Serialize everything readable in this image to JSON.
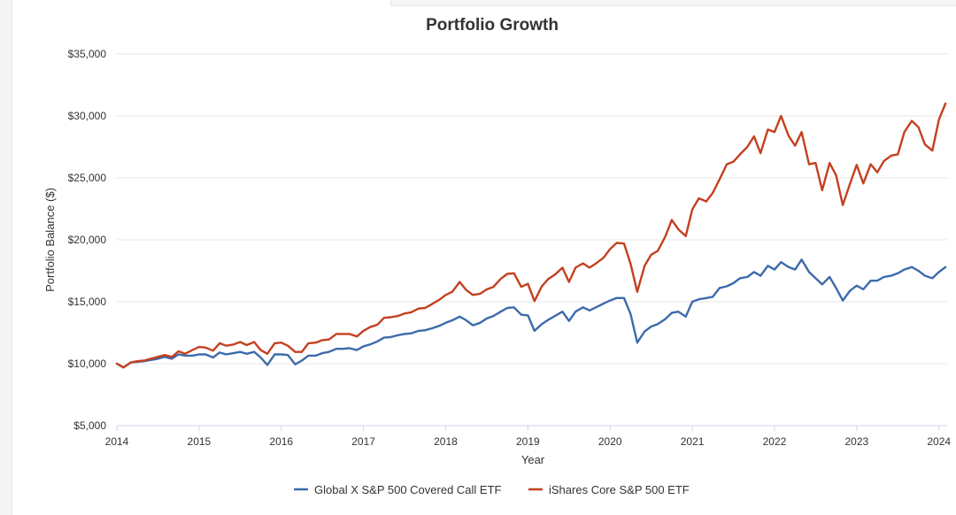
{
  "chart_data": {
    "type": "line",
    "title": "Portfolio Growth",
    "xlabel": "Year",
    "ylabel": "Portfolio Balance ($)",
    "xlim": [
      2014,
      2024.1
    ],
    "ylim": [
      5000,
      35000
    ],
    "yticks": [
      5000,
      10000,
      15000,
      20000,
      25000,
      30000,
      35000
    ],
    "ytick_labels": [
      "$5,000",
      "$10,000",
      "$15,000",
      "$20,000",
      "$25,000",
      "$30,000",
      "$35,000"
    ],
    "xticks": [
      2014,
      2015,
      2016,
      2017,
      2018,
      2019,
      2020,
      2021,
      2022,
      2023,
      2024
    ],
    "xtick_labels": [
      "2014",
      "2015",
      "2016",
      "2017",
      "2018",
      "2019",
      "2020",
      "2021",
      "2022",
      "2023",
      "2024"
    ],
    "grid": true,
    "legend_position": "bottom-center",
    "series": [
      {
        "name": "Global X S&P 500 Covered Call ETF",
        "color": "#3c6bab",
        "points": [
          [
            2014.0,
            10000
          ],
          [
            2014.08,
            9700
          ],
          [
            2014.17,
            10100
          ],
          [
            2014.25,
            10150
          ],
          [
            2014.33,
            10200
          ],
          [
            2014.5,
            10400
          ],
          [
            2014.58,
            10550
          ],
          [
            2014.67,
            10400
          ],
          [
            2014.75,
            10750
          ],
          [
            2014.83,
            10650
          ],
          [
            2014.92,
            10650
          ],
          [
            2015.0,
            10750
          ],
          [
            2015.08,
            10750
          ],
          [
            2015.17,
            10500
          ],
          [
            2015.25,
            10900
          ],
          [
            2015.33,
            10750
          ],
          [
            2015.42,
            10850
          ],
          [
            2015.5,
            10950
          ],
          [
            2015.58,
            10800
          ],
          [
            2015.67,
            10950
          ],
          [
            2015.75,
            10500
          ],
          [
            2015.83,
            9900
          ],
          [
            2015.92,
            10750
          ],
          [
            2016.0,
            10750
          ],
          [
            2016.08,
            10700
          ],
          [
            2016.17,
            9950
          ],
          [
            2016.25,
            10250
          ],
          [
            2016.33,
            10650
          ],
          [
            2016.42,
            10650
          ],
          [
            2016.5,
            10850
          ],
          [
            2016.58,
            10950
          ],
          [
            2016.67,
            11200
          ],
          [
            2016.75,
            11200
          ],
          [
            2016.83,
            11250
          ],
          [
            2016.92,
            11100
          ],
          [
            2017.0,
            11400
          ],
          [
            2017.08,
            11550
          ],
          [
            2017.17,
            11800
          ],
          [
            2017.25,
            12100
          ],
          [
            2017.33,
            12150
          ],
          [
            2017.42,
            12300
          ],
          [
            2017.5,
            12400
          ],
          [
            2017.58,
            12450
          ],
          [
            2017.67,
            12650
          ],
          [
            2017.75,
            12700
          ],
          [
            2017.83,
            12850
          ],
          [
            2017.92,
            13050
          ],
          [
            2018.0,
            13300
          ],
          [
            2018.08,
            13500
          ],
          [
            2018.17,
            13800
          ],
          [
            2018.25,
            13500
          ],
          [
            2018.33,
            13100
          ],
          [
            2018.42,
            13300
          ],
          [
            2018.5,
            13650
          ],
          [
            2018.58,
            13850
          ],
          [
            2018.67,
            14200
          ],
          [
            2018.75,
            14500
          ],
          [
            2018.83,
            14550
          ],
          [
            2018.92,
            13950
          ],
          [
            2019.0,
            13900
          ],
          [
            2019.08,
            12650
          ],
          [
            2019.17,
            13200
          ],
          [
            2019.25,
            13550
          ],
          [
            2019.33,
            13850
          ],
          [
            2019.42,
            14200
          ],
          [
            2019.5,
            13450
          ],
          [
            2019.58,
            14200
          ],
          [
            2019.67,
            14550
          ],
          [
            2019.75,
            14300
          ],
          [
            2019.83,
            14550
          ],
          [
            2019.92,
            14850
          ],
          [
            2020.0,
            15100
          ],
          [
            2020.08,
            15300
          ],
          [
            2020.17,
            15300
          ],
          [
            2020.25,
            14000
          ],
          [
            2020.33,
            11700
          ],
          [
            2020.42,
            12600
          ],
          [
            2020.5,
            13000
          ],
          [
            2020.58,
            13200
          ],
          [
            2020.67,
            13600
          ],
          [
            2020.75,
            14100
          ],
          [
            2020.83,
            14200
          ],
          [
            2020.92,
            13800
          ],
          [
            2021.0,
            15000
          ],
          [
            2021.08,
            15200
          ],
          [
            2021.17,
            15300
          ],
          [
            2021.25,
            15400
          ],
          [
            2021.33,
            16100
          ],
          [
            2021.42,
            16250
          ],
          [
            2021.5,
            16500
          ],
          [
            2021.58,
            16900
          ],
          [
            2021.67,
            17000
          ],
          [
            2021.75,
            17400
          ],
          [
            2021.83,
            17100
          ],
          [
            2021.92,
            17900
          ],
          [
            2022.0,
            17600
          ],
          [
            2022.08,
            18200
          ],
          [
            2022.17,
            17800
          ],
          [
            2022.25,
            17600
          ],
          [
            2022.33,
            18400
          ],
          [
            2022.42,
            17400
          ],
          [
            2022.5,
            16900
          ],
          [
            2022.58,
            16400
          ],
          [
            2022.67,
            17000
          ],
          [
            2022.75,
            16100
          ],
          [
            2022.83,
            15100
          ],
          [
            2022.92,
            15900
          ],
          [
            2023.0,
            16300
          ],
          [
            2023.08,
            16000
          ],
          [
            2023.17,
            16700
          ],
          [
            2023.25,
            16700
          ],
          [
            2023.33,
            17000
          ],
          [
            2023.42,
            17100
          ],
          [
            2023.5,
            17300
          ],
          [
            2023.58,
            17600
          ],
          [
            2023.67,
            17800
          ],
          [
            2023.75,
            17500
          ],
          [
            2023.83,
            17100
          ],
          [
            2023.92,
            16900
          ],
          [
            2024.0,
            17400
          ],
          [
            2024.08,
            17800
          ]
        ]
      },
      {
        "name": "iShares Core S&P 500 ETF",
        "color": "#c4401f",
        "points": [
          [
            2014.0,
            10000
          ],
          [
            2014.08,
            9700
          ],
          [
            2014.17,
            10100
          ],
          [
            2014.25,
            10200
          ],
          [
            2014.33,
            10250
          ],
          [
            2014.5,
            10550
          ],
          [
            2014.58,
            10700
          ],
          [
            2014.67,
            10550
          ],
          [
            2014.75,
            11000
          ],
          [
            2014.83,
            10800
          ],
          [
            2014.92,
            11100
          ],
          [
            2015.0,
            11350
          ],
          [
            2015.08,
            11300
          ],
          [
            2015.17,
            11050
          ],
          [
            2015.25,
            11650
          ],
          [
            2015.33,
            11450
          ],
          [
            2015.42,
            11550
          ],
          [
            2015.5,
            11750
          ],
          [
            2015.58,
            11500
          ],
          [
            2015.67,
            11750
          ],
          [
            2015.75,
            11100
          ],
          [
            2015.83,
            10800
          ],
          [
            2015.92,
            11650
          ],
          [
            2016.0,
            11700
          ],
          [
            2016.08,
            11450
          ],
          [
            2016.17,
            10950
          ],
          [
            2016.25,
            10950
          ],
          [
            2016.33,
            11650
          ],
          [
            2016.42,
            11700
          ],
          [
            2016.5,
            11900
          ],
          [
            2016.58,
            11950
          ],
          [
            2016.67,
            12400
          ],
          [
            2016.75,
            12400
          ],
          [
            2016.83,
            12400
          ],
          [
            2016.92,
            12200
          ],
          [
            2017.0,
            12650
          ],
          [
            2017.08,
            12950
          ],
          [
            2017.17,
            13150
          ],
          [
            2017.25,
            13700
          ],
          [
            2017.33,
            13750
          ],
          [
            2017.42,
            13850
          ],
          [
            2017.5,
            14050
          ],
          [
            2017.58,
            14150
          ],
          [
            2017.67,
            14450
          ],
          [
            2017.75,
            14500
          ],
          [
            2017.83,
            14800
          ],
          [
            2017.92,
            15150
          ],
          [
            2018.0,
            15550
          ],
          [
            2018.08,
            15800
          ],
          [
            2018.17,
            16600
          ],
          [
            2018.25,
            15950
          ],
          [
            2018.33,
            15550
          ],
          [
            2018.42,
            15650
          ],
          [
            2018.5,
            16000
          ],
          [
            2018.58,
            16200
          ],
          [
            2018.67,
            16850
          ],
          [
            2018.75,
            17250
          ],
          [
            2018.83,
            17300
          ],
          [
            2018.92,
            16200
          ],
          [
            2019.0,
            16450
          ],
          [
            2019.08,
            15050
          ],
          [
            2019.17,
            16250
          ],
          [
            2019.25,
            16850
          ],
          [
            2019.33,
            17200
          ],
          [
            2019.42,
            17750
          ],
          [
            2019.5,
            16600
          ],
          [
            2019.58,
            17750
          ],
          [
            2019.67,
            18100
          ],
          [
            2019.75,
            17750
          ],
          [
            2019.83,
            18100
          ],
          [
            2019.92,
            18550
          ],
          [
            2020.0,
            19250
          ],
          [
            2020.08,
            19750
          ],
          [
            2020.17,
            19700
          ],
          [
            2020.25,
            18050
          ],
          [
            2020.33,
            15800
          ],
          [
            2020.42,
            17900
          ],
          [
            2020.5,
            18800
          ],
          [
            2020.58,
            19100
          ],
          [
            2020.67,
            20250
          ],
          [
            2020.75,
            21600
          ],
          [
            2020.83,
            20850
          ],
          [
            2020.92,
            20300
          ],
          [
            2021.0,
            22450
          ],
          [
            2021.08,
            23350
          ],
          [
            2021.17,
            23100
          ],
          [
            2021.25,
            23800
          ],
          [
            2021.33,
            24850
          ],
          [
            2021.42,
            26100
          ],
          [
            2021.5,
            26300
          ],
          [
            2021.58,
            26900
          ],
          [
            2021.67,
            27500
          ],
          [
            2021.75,
            28350
          ],
          [
            2021.83,
            27000
          ],
          [
            2021.92,
            28900
          ],
          [
            2022.0,
            28700
          ],
          [
            2022.08,
            30000
          ],
          [
            2022.17,
            28400
          ],
          [
            2022.25,
            27600
          ],
          [
            2022.33,
            28700
          ],
          [
            2022.42,
            26100
          ],
          [
            2022.5,
            26200
          ],
          [
            2022.58,
            24000
          ],
          [
            2022.67,
            26200
          ],
          [
            2022.75,
            25200
          ],
          [
            2022.83,
            22800
          ],
          [
            2022.92,
            24550
          ],
          [
            2023.0,
            26050
          ],
          [
            2023.08,
            24550
          ],
          [
            2023.17,
            26100
          ],
          [
            2023.25,
            25450
          ],
          [
            2023.33,
            26350
          ],
          [
            2023.42,
            26800
          ],
          [
            2023.5,
            26900
          ],
          [
            2023.58,
            28700
          ],
          [
            2023.67,
            29600
          ],
          [
            2023.75,
            29100
          ],
          [
            2023.83,
            27700
          ],
          [
            2023.92,
            27200
          ],
          [
            2024.0,
            29700
          ],
          [
            2024.08,
            31000
          ]
        ]
      }
    ]
  }
}
